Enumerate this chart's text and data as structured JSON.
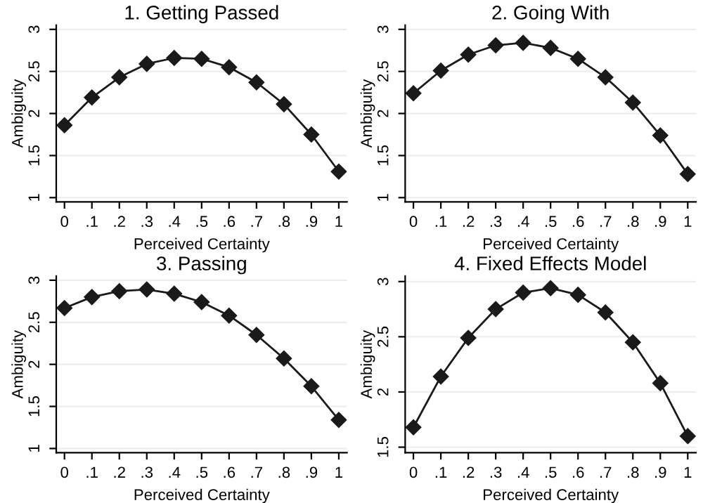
{
  "chart_data": [
    {
      "type": "line",
      "title": "1. Getting Passed",
      "xlabel": "Perceived Certainty",
      "ylabel": "Ambiguity",
      "marker": "diamond",
      "line_style": "solid",
      "grid": "y",
      "x": [
        0,
        0.1,
        0.2,
        0.3,
        0.4,
        0.5,
        0.6,
        0.7,
        0.8,
        0.9,
        1
      ],
      "series": [
        {
          "color": "#1a1a1a",
          "values": [
            1.86,
            2.19,
            2.43,
            2.59,
            2.66,
            2.65,
            2.55,
            2.37,
            2.11,
            1.75,
            1.31
          ]
        }
      ],
      "xlim": [
        -0.03,
        1.03
      ],
      "xticks": [
        0,
        {
          "value": 0.1,
          "label": ".1"
        },
        {
          "value": 0.2,
          "label": ".2"
        },
        {
          "value": 0.3,
          "label": ".3"
        },
        {
          "value": 0.4,
          "label": ".4"
        },
        {
          "value": 0.5,
          "label": ".5"
        },
        {
          "value": 0.6,
          "label": ".6"
        },
        {
          "value": 0.7,
          "label": ".7"
        },
        {
          "value": 0.8,
          "label": ".8"
        },
        {
          "value": 0.9,
          "label": ".9"
        },
        1
      ],
      "ylim": [
        0.95,
        3.05
      ],
      "yticks": [
        1,
        1.5,
        2,
        2.5,
        3
      ]
    },
    {
      "type": "line",
      "title": "2. Going With",
      "xlabel": "Perceived Certainty",
      "ylabel": "Ambiguity",
      "marker": "diamond",
      "line_style": "solid",
      "grid": "y",
      "x": [
        0,
        0.1,
        0.2,
        0.3,
        0.4,
        0.5,
        0.6,
        0.7,
        0.8,
        0.9,
        1
      ],
      "series": [
        {
          "color": "#1a1a1a",
          "values": [
            2.24,
            2.51,
            2.7,
            2.81,
            2.84,
            2.78,
            2.65,
            2.43,
            2.13,
            1.74,
            1.28
          ]
        }
      ],
      "xlim": [
        -0.03,
        1.03
      ],
      "xticks": [
        0,
        {
          "value": 0.1,
          "label": ".1"
        },
        {
          "value": 0.2,
          "label": ".2"
        },
        {
          "value": 0.3,
          "label": ".3"
        },
        {
          "value": 0.4,
          "label": ".4"
        },
        {
          "value": 0.5,
          "label": ".5"
        },
        {
          "value": 0.6,
          "label": ".6"
        },
        {
          "value": 0.7,
          "label": ".7"
        },
        {
          "value": 0.8,
          "label": ".8"
        },
        {
          "value": 0.9,
          "label": ".9"
        },
        1
      ],
      "ylim": [
        0.95,
        3.05
      ],
      "yticks": [
        1,
        1.5,
        2,
        2.5,
        3
      ]
    },
    {
      "type": "line",
      "title": "3. Passing",
      "xlabel": "Perceived Certainty",
      "ylabel": "Ambiguity",
      "marker": "diamond",
      "line_style": "solid",
      "grid": "y",
      "x": [
        0,
        0.1,
        0.2,
        0.3,
        0.4,
        0.5,
        0.6,
        0.7,
        0.8,
        0.9,
        1
      ],
      "series": [
        {
          "color": "#1a1a1a",
          "values": [
            2.67,
            2.8,
            2.87,
            2.89,
            2.84,
            2.74,
            2.58,
            2.35,
            2.07,
            1.74,
            1.34
          ]
        }
      ],
      "xlim": [
        -0.03,
        1.03
      ],
      "xticks": [
        0,
        {
          "value": 0.1,
          "label": ".1"
        },
        {
          "value": 0.2,
          "label": ".2"
        },
        {
          "value": 0.3,
          "label": ".3"
        },
        {
          "value": 0.4,
          "label": ".4"
        },
        {
          "value": 0.5,
          "label": ".5"
        },
        {
          "value": 0.6,
          "label": ".6"
        },
        {
          "value": 0.7,
          "label": ".7"
        },
        {
          "value": 0.8,
          "label": ".8"
        },
        {
          "value": 0.9,
          "label": ".9"
        },
        1
      ],
      "ylim": [
        0.95,
        3.05
      ],
      "yticks": [
        1,
        1.5,
        2,
        2.5,
        3
      ]
    },
    {
      "type": "line",
      "title": "4. Fixed Effects Model",
      "xlabel": "Perceived Certainty",
      "ylabel": "Ambiguity",
      "marker": "diamond",
      "line_style": "solid",
      "grid": "y",
      "x": [
        0,
        0.1,
        0.2,
        0.3,
        0.4,
        0.5,
        0.6,
        0.7,
        0.8,
        0.9,
        1
      ],
      "series": [
        {
          "color": "#1a1a1a",
          "values": [
            1.68,
            2.14,
            2.49,
            2.75,
            2.9,
            2.94,
            2.88,
            2.72,
            2.45,
            2.08,
            1.6
          ]
        }
      ],
      "xlim": [
        -0.03,
        1.03
      ],
      "xticks": [
        0,
        {
          "value": 0.1,
          "label": ".1"
        },
        {
          "value": 0.2,
          "label": ".2"
        },
        {
          "value": 0.3,
          "label": ".3"
        },
        {
          "value": 0.4,
          "label": ".4"
        },
        {
          "value": 0.5,
          "label": ".5"
        },
        {
          "value": 0.6,
          "label": ".6"
        },
        {
          "value": 0.7,
          "label": ".7"
        },
        {
          "value": 0.8,
          "label": ".8"
        },
        {
          "value": 0.9,
          "label": ".9"
        },
        1
      ],
      "ylim": [
        1.45,
        3.05
      ],
      "yticks": [
        1.5,
        2,
        2.5,
        3
      ]
    }
  ]
}
